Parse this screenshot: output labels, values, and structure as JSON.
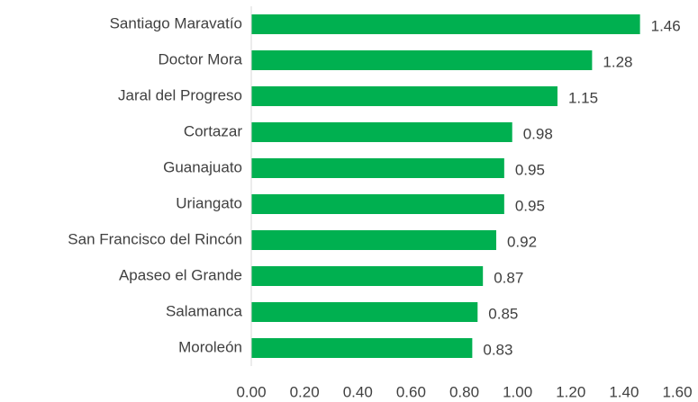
{
  "chart_data": {
    "type": "hbar",
    "categories": [
      "Santiago Maravatío",
      "Doctor Mora",
      "Jaral del Progreso",
      "Cortazar",
      "Guanajuato",
      "Uriangato",
      "San Francisco del Rincón",
      "Apaseo el Grande",
      "Salamanca",
      "Moroleón"
    ],
    "values": [
      1.46,
      1.28,
      1.15,
      0.98,
      0.95,
      0.95,
      0.92,
      0.87,
      0.85,
      0.83
    ],
    "color": "#00b050",
    "xlim": [
      0,
      1.6
    ],
    "xticks": [
      {
        "value": 0,
        "label": "0.00"
      },
      {
        "value": 0.2,
        "label": "0.20"
      },
      {
        "value": 0.4,
        "label": "0.40"
      },
      {
        "value": 0.6,
        "label": "0.60"
      },
      {
        "value": 0.8,
        "label": "0.80"
      },
      {
        "value": 1.0,
        "label": "1.00"
      },
      {
        "value": 1.2,
        "label": "1.20"
      },
      {
        "value": 1.4,
        "label": "1.40"
      },
      {
        "value": 1.6,
        "label": "1.60"
      }
    ],
    "grid": false
  }
}
